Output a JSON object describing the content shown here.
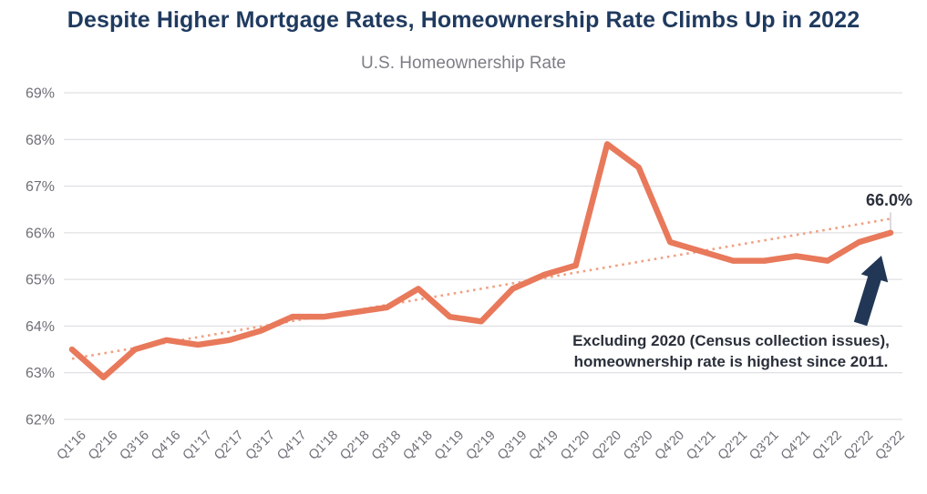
{
  "page": {
    "title": "Despite Higher Mortgage Rates, Homeownership Rate Climbs Up in 2022"
  },
  "colors": {
    "title": "#1F3A5F",
    "subtitle_text": "#7D7D85",
    "line": "#E8795B",
    "trendline": "#F0A183",
    "grid": "#D9D9DE",
    "axis_text": "#6E6E77",
    "annotation_text": "#2A2F3A",
    "arrow": "#223755",
    "leader": "#C0C0C8"
  },
  "chart_data": {
    "type": "line",
    "title": "U.S. Homeownership Rate",
    "categories": [
      "Q1'16",
      "Q2'16",
      "Q3'16",
      "Q4'16",
      "Q1'17",
      "Q2'17",
      "Q3'17",
      "Q4'17",
      "Q1'18",
      "Q2'18",
      "Q3'18",
      "Q4'18",
      "Q1'19",
      "Q2'19",
      "Q3'19",
      "Q4'19",
      "Q1'20",
      "Q2'20",
      "Q3'20",
      "Q4'20",
      "Q1'21",
      "Q2'21",
      "Q3'21",
      "Q4'21",
      "Q1'22",
      "Q2'22",
      "Q3'22"
    ],
    "series": [
      {
        "name": "U.S. Homeownership Rate",
        "values": [
          63.5,
          62.9,
          63.5,
          63.7,
          63.6,
          63.7,
          63.9,
          64.2,
          64.2,
          64.3,
          64.4,
          64.8,
          64.2,
          64.1,
          64.8,
          65.1,
          65.3,
          67.9,
          67.4,
          65.8,
          65.6,
          65.4,
          65.4,
          65.5,
          65.4,
          65.8,
          66.0
        ]
      }
    ],
    "trendline": {
      "start_value": 63.3,
      "end_value": 66.3,
      "style": "dotted"
    },
    "ylim": [
      62,
      69
    ],
    "y_ticks": [
      69,
      68,
      67,
      66,
      65,
      64,
      63,
      62
    ],
    "y_tick_suffix": "%",
    "grid": "horizontal",
    "legend": "none",
    "end_label": "66.0%",
    "annotation": {
      "line1": "Excluding 2020 (Census collection issues),",
      "line2": "homeownership rate is highest since 2011."
    }
  }
}
